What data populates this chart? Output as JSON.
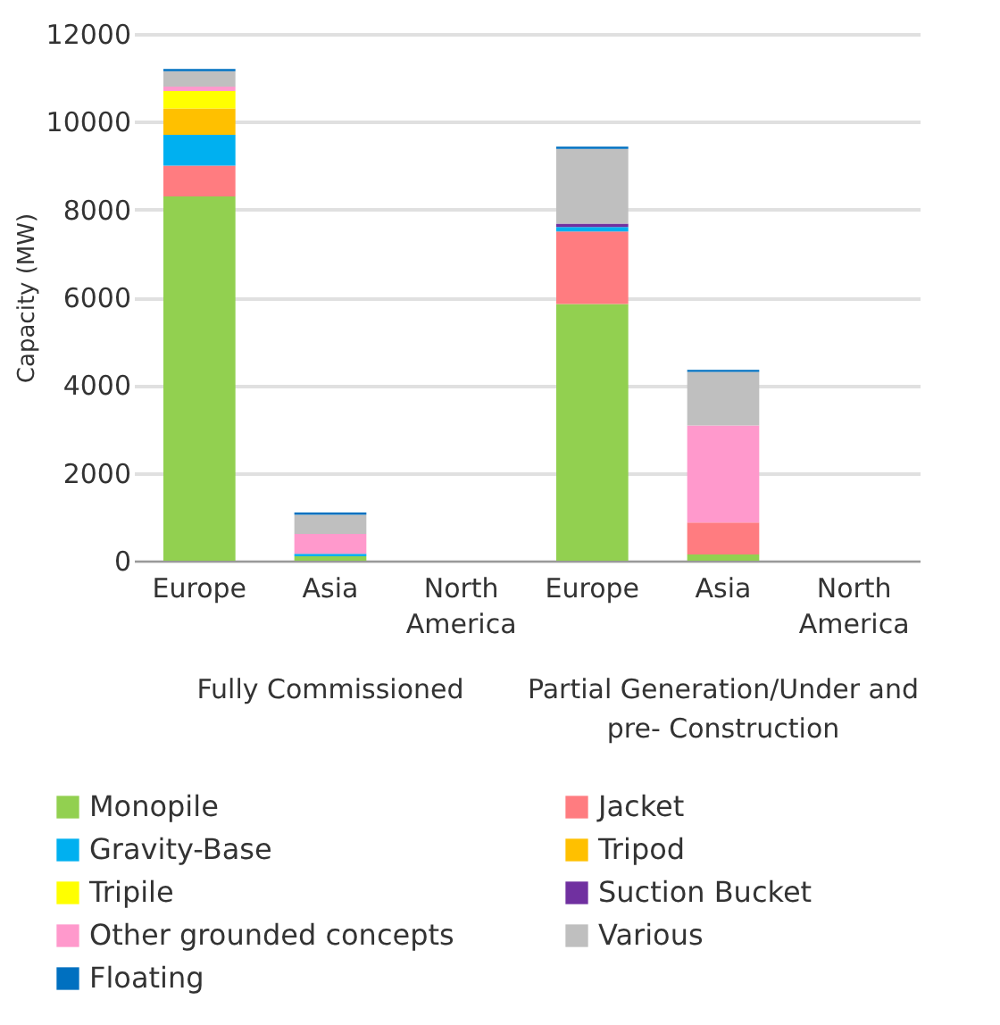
{
  "chart_data": {
    "type": "bar",
    "stacked": true,
    "ylabel": "Capacity (MW)",
    "categories": [
      "Europe",
      "Asia",
      "North America",
      "Europe",
      "Asia",
      "North America"
    ],
    "annotations": [
      "Fully Commissioned",
      "Partial Generation/Under and pre- Construction"
    ],
    "series": [
      {
        "name": "Monopile",
        "color": "#92d050",
        "values": [
          8300,
          100,
          0,
          5850,
          140,
          0
        ]
      },
      {
        "name": "Jacket",
        "color": "#ff7c80",
        "values": [
          700,
          0,
          0,
          1650,
          730,
          0
        ]
      },
      {
        "name": "Gravity-Base",
        "color": "#00b0f0",
        "values": [
          700,
          60,
          0,
          100,
          0,
          0
        ]
      },
      {
        "name": "Tripod",
        "color": "#ffc000",
        "values": [
          600,
          0,
          0,
          0,
          0,
          0
        ]
      },
      {
        "name": "Tripile",
        "color": "#ffff00",
        "values": [
          400,
          0,
          0,
          0,
          0,
          0
        ]
      },
      {
        "name": "Suction Bucket",
        "color": "#7030a0",
        "values": [
          0,
          0,
          0,
          80,
          0,
          0
        ]
      },
      {
        "name": "Other grounded concepts",
        "color": "#ff99cc",
        "values": [
          100,
          450,
          0,
          0,
          2210,
          0
        ]
      },
      {
        "name": "Various",
        "color": "#bfbfbf",
        "values": [
          350,
          440,
          0,
          1700,
          1220,
          0
        ]
      },
      {
        "name": "Floating",
        "color": "#0070c0",
        "values": [
          50,
          50,
          0,
          50,
          50,
          0
        ]
      }
    ],
    "ylim": [
      0,
      12000
    ],
    "yticks": [
      0,
      2000,
      4000,
      6000,
      8000,
      10000,
      12000
    ],
    "grid": "y",
    "legend": "bottom"
  }
}
